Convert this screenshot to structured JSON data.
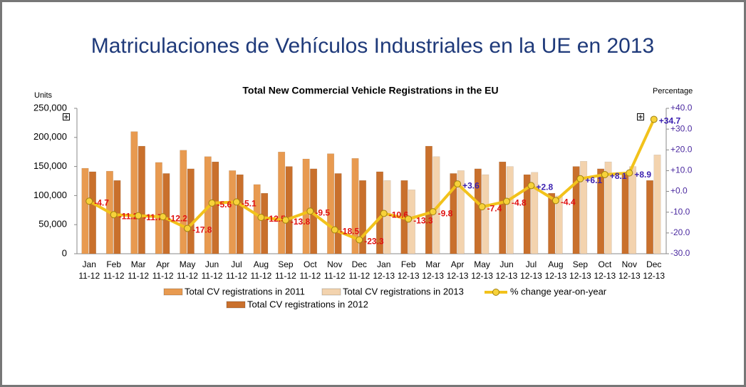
{
  "chart_data": {
    "type": "bar",
    "title": "Matriculaciones de Vehículos Industriales en la UE en 2013",
    "subtitle": "Total New Commercial Vehicle Registrations in the EU",
    "ylabel": "Units",
    "y2label": "Percentage",
    "categories": [
      [
        "Jan",
        "11-12"
      ],
      [
        "Feb",
        "11-12"
      ],
      [
        "Mar",
        "11-12"
      ],
      [
        "Apr",
        "11-12"
      ],
      [
        "May",
        "11-12"
      ],
      [
        "Jun",
        "11-12"
      ],
      [
        "Jul",
        "11-12"
      ],
      [
        "Aug",
        "11-12"
      ],
      [
        "Sep",
        "11-12"
      ],
      [
        "Oct",
        "11-12"
      ],
      [
        "Nov",
        "11-12"
      ],
      [
        "Dec",
        "11-12"
      ],
      [
        "Jan",
        "12-13"
      ],
      [
        "Feb",
        "12-13"
      ],
      [
        "Mar",
        "12-13"
      ],
      [
        "Apr",
        "12-13"
      ],
      [
        "May",
        "12-13"
      ],
      [
        "Jun",
        "12-13"
      ],
      [
        "Jul",
        "12-13"
      ],
      [
        "Aug",
        "12-13"
      ],
      [
        "Sep",
        "12-13"
      ],
      [
        "Oct",
        "12-13"
      ],
      [
        "Nov",
        "12-13"
      ],
      [
        "Dec",
        "12-13"
      ]
    ],
    "series": [
      {
        "name": "Total CV registrations in 2011",
        "type": "bar",
        "color": "#e89a50",
        "values": [
          147000,
          142000,
          210000,
          157000,
          178000,
          167000,
          143000,
          119000,
          175000,
          163000,
          172000,
          164000,
          null,
          null,
          null,
          null,
          null,
          null,
          null,
          null,
          null,
          null,
          null,
          null
        ]
      },
      {
        "name": "Total CV registrations in 2012",
        "type": "bar",
        "color": "#c9702c",
        "values": [
          141000,
          126000,
          185000,
          138000,
          146000,
          158000,
          136000,
          104000,
          150000,
          146000,
          138000,
          126000,
          141000,
          126000,
          185000,
          138000,
          146000,
          158000,
          136000,
          104000,
          150000,
          146000,
          138000,
          126000
        ]
      },
      {
        "name": "Total CV registrations in 2013",
        "type": "bar",
        "color": "#f3d3ae",
        "values": [
          null,
          null,
          null,
          null,
          null,
          null,
          null,
          null,
          null,
          null,
          null,
          null,
          126000,
          110000,
          167000,
          143000,
          136000,
          150000,
          140000,
          99500,
          159000,
          158000,
          150000,
          170000
        ]
      },
      {
        "name": "% change year-on-year",
        "type": "line",
        "axis": "y2",
        "color": "#f2c21b",
        "values": [
          -4.7,
          -11.2,
          -11.7,
          -12.2,
          -17.8,
          -5.6,
          -5.1,
          -12.5,
          -13.8,
          -9.5,
          -18.5,
          -23.3,
          -10.6,
          -13.3,
          -9.8,
          3.6,
          -7.4,
          -4.8,
          2.8,
          -4.4,
          6.1,
          8.1,
          8.9,
          34.7
        ],
        "value_labels": [
          "-4.7",
          "-11.2",
          "-11.7",
          "-12.2",
          "-17.8",
          "-5.6",
          "-5.1",
          "-12.5",
          "-13.8",
          "-9.5",
          "-18.5",
          "-23.3",
          "-10.6",
          "-13.3",
          "-9.8",
          "+3.6",
          "-7.4",
          "-4.8",
          "+2.8",
          "-4.4",
          "+6.1",
          "+8.1",
          "+8.9",
          "+34.7"
        ]
      }
    ],
    "ylim": [
      0,
      250000
    ],
    "yticks": [
      0,
      {
        "value": 50000,
        "label": "50,000"
      },
      {
        "value": 100000,
        "label": "100,000"
      },
      {
        "value": 150000,
        "label": "150,000"
      },
      {
        "value": 200000,
        "label": "200,000"
      },
      {
        "value": 250000,
        "label": "250,000"
      }
    ],
    "y2lim": [
      -30,
      40
    ],
    "y2ticks": [
      {
        "value": -30,
        "label": "-30.0"
      },
      {
        "value": -20,
        "label": "-20.0"
      },
      {
        "value": -10,
        "label": "-10.0"
      },
      {
        "value": 0,
        "label": "+0.0"
      },
      {
        "value": 10,
        "label": "+10.0"
      },
      {
        "value": 20,
        "label": "+20.0"
      },
      {
        "value": 30,
        "label": "+30.0"
      },
      {
        "value": 40,
        "label": "+40.0"
      }
    ],
    "grid": false
  }
}
